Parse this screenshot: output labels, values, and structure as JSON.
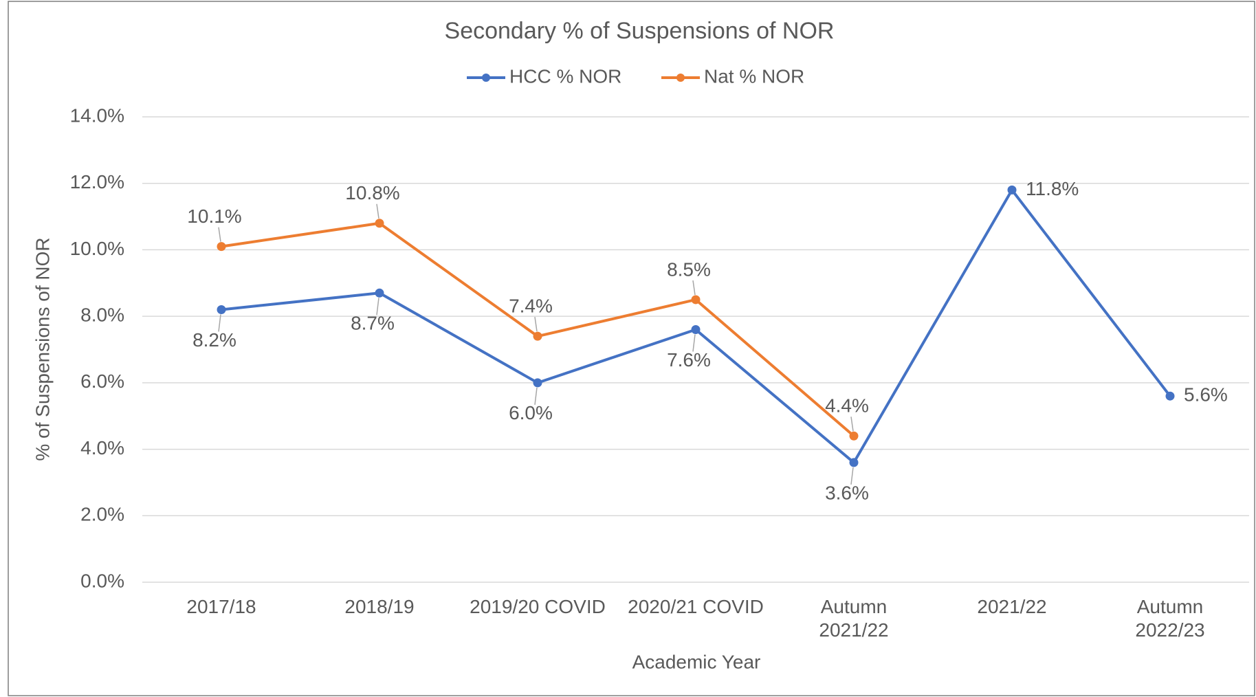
{
  "chart_data": {
    "type": "line",
    "title": "Secondary % of Suspensions of NOR",
    "x_label": "Academic Year",
    "y_label": "% of Suspensions of NOR",
    "categories": [
      "2017/18",
      "2018/19",
      "2019/20 COVID",
      "2020/21 COVID",
      "Autumn\n2021/22",
      "2021/22",
      "Autumn\n2022/23"
    ],
    "series": [
      {
        "name": "HCC % NOR",
        "color": "#4472c4",
        "values": [
          8.2,
          8.7,
          6.0,
          7.6,
          3.6,
          11.8,
          5.6
        ],
        "value_labels": [
          "8.2%",
          "8.7%",
          "6.0%",
          "7.6%",
          "3.6%",
          "11.8%",
          "5.6%"
        ]
      },
      {
        "name": "Nat % NOR",
        "color": "#ed7d31",
        "values": [
          10.1,
          10.8,
          7.4,
          8.5,
          4.4,
          null,
          null
        ],
        "value_labels": [
          "10.1%",
          "10.8%",
          "7.4%",
          "8.5%",
          "4.4%",
          null,
          null
        ]
      }
    ],
    "ylim": [
      0,
      14
    ],
    "yticks": [
      {
        "value": 0,
        "label": "0.0%"
      },
      {
        "value": 2,
        "label": "2.0%"
      },
      {
        "value": 4,
        "label": "4.0%"
      },
      {
        "value": 6,
        "label": "6.0%"
      },
      {
        "value": 8,
        "label": "8.0%"
      },
      {
        "value": 10,
        "label": "10.0%"
      },
      {
        "value": 12,
        "label": "12.0%"
      },
      {
        "value": 14,
        "label": "14.0%"
      }
    ],
    "grid": true,
    "legend": "top"
  }
}
